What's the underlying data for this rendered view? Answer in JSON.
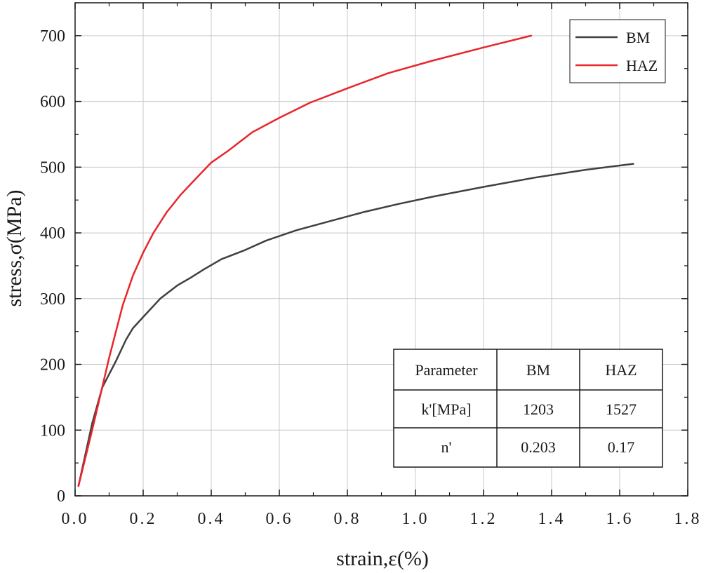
{
  "chart_data": {
    "type": "line",
    "xlabel": "strain,ε(%)",
    "ylabel": "stress,σ(MPa)",
    "xlim": [
      0,
      1.8
    ],
    "ylim": [
      0,
      750
    ],
    "xticks": [
      0.0,
      0.2,
      0.4,
      0.6,
      0.8,
      1.0,
      1.2,
      1.4,
      1.6,
      1.8
    ],
    "xtick_labels": [
      "0.0",
      "0.2",
      "0.4",
      "0.6",
      "0.8",
      "1.0",
      "1.2",
      "1.4",
      "1.6",
      "1.8"
    ],
    "yticks": [
      0,
      100,
      200,
      300,
      400,
      500,
      600,
      700
    ],
    "ytick_labels": [
      "0",
      "100",
      "200",
      "300",
      "400",
      "500",
      "600",
      "700"
    ],
    "grid": true,
    "legend_position": "top-right",
    "series": [
      {
        "name": "BM",
        "color": "#404040",
        "x": [
          0.01,
          0.05,
          0.08,
          0.12,
          0.15,
          0.17,
          0.2,
          0.25,
          0.3,
          0.34,
          0.38,
          0.43,
          0.5,
          0.56,
          0.65,
          0.75,
          0.85,
          0.95,
          1.05,
          1.2,
          1.35,
          1.5,
          1.64
        ],
        "y": [
          15,
          110,
          165,
          205,
          238,
          255,
          272,
          300,
          320,
          332,
          345,
          360,
          374,
          388,
          404,
          418,
          432,
          444,
          455,
          470,
          484,
          496,
          505
        ]
      },
      {
        "name": "HAZ",
        "color": "#e8262b",
        "x": [
          0.01,
          0.05,
          0.1,
          0.14,
          0.17,
          0.2,
          0.23,
          0.27,
          0.31,
          0.35,
          0.4,
          0.45,
          0.52,
          0.6,
          0.69,
          0.8,
          0.92,
          1.05,
          1.2,
          1.34
        ],
        "y": [
          15,
          100,
          210,
          290,
          335,
          370,
          400,
          432,
          458,
          480,
          507,
          525,
          553,
          575,
          598,
          620,
          643,
          662,
          682,
          700
        ]
      }
    ],
    "table": {
      "headers": [
        "Parameter",
        "BM",
        "HAZ"
      ],
      "rows": [
        [
          "k'[MPa]",
          "1203",
          "1527"
        ],
        [
          "n'",
          "0.203",
          "0.17"
        ]
      ]
    }
  }
}
